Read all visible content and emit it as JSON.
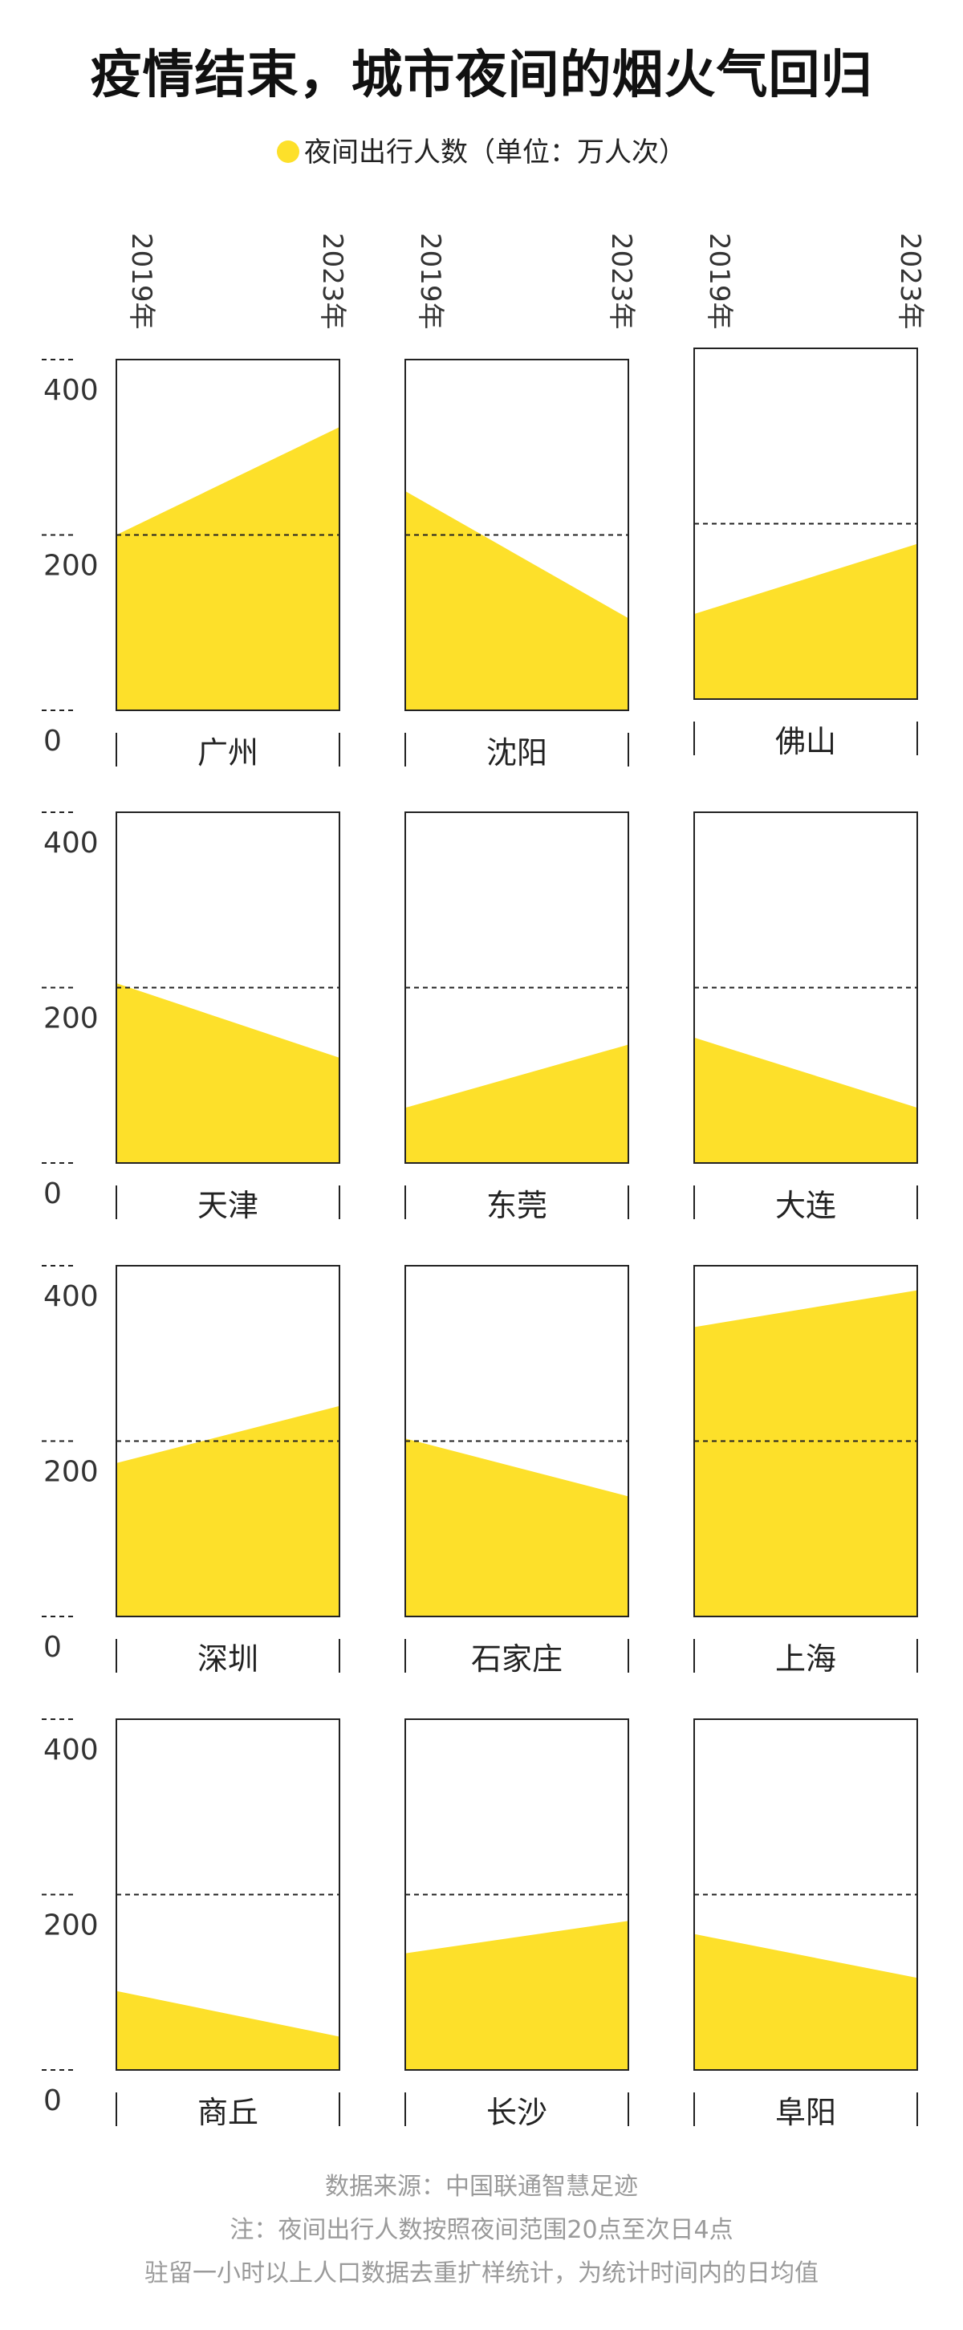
{
  "title": "疫情结束，城市夜间的烟火气回归",
  "legend": {
    "label": "夜间出行人数（单位：万人次）",
    "color": "#FDE02A"
  },
  "x_labels": [
    "2019年",
    "2023年"
  ],
  "y_ticks": [
    "400",
    "200",
    "0"
  ],
  "footer": [
    "数据来源：中国联通智慧足迹",
    "注：夜间出行人数按照夜间范围20点至次日4点",
    "驻留一小时以上人口数据去重扩样统计，为统计时间内的日均值"
  ],
  "chart_data": {
    "type": "area",
    "title": "疫情结束，城市夜间的烟火气回归",
    "unit": "万人次",
    "x": [
      "2019年",
      "2023年"
    ],
    "ylim": [
      0,
      400
    ],
    "y_ticks": [
      0,
      200,
      400
    ],
    "reference_line": 200,
    "series": [
      {
        "name": "广州",
        "values": [
          200,
          323
        ]
      },
      {
        "name": "沈阳",
        "values": [
          250,
          105
        ]
      },
      {
        "name": "佛山",
        "values": [
          97,
          177
        ]
      },
      {
        "name": "天津",
        "values": [
          205,
          120
        ]
      },
      {
        "name": "东莞",
        "values": [
          63,
          135
        ]
      },
      {
        "name": "大连",
        "values": [
          143,
          63
        ]
      },
      {
        "name": "深圳",
        "values": [
          175,
          240
        ]
      },
      {
        "name": "石家庄",
        "values": [
          203,
          137
        ]
      },
      {
        "name": "上海",
        "values": [
          330,
          372
        ]
      },
      {
        "name": "商丘",
        "values": [
          90,
          38
        ]
      },
      {
        "name": "长沙",
        "values": [
          133,
          170
        ]
      },
      {
        "name": "阜阳",
        "values": [
          155,
          105
        ]
      }
    ]
  }
}
